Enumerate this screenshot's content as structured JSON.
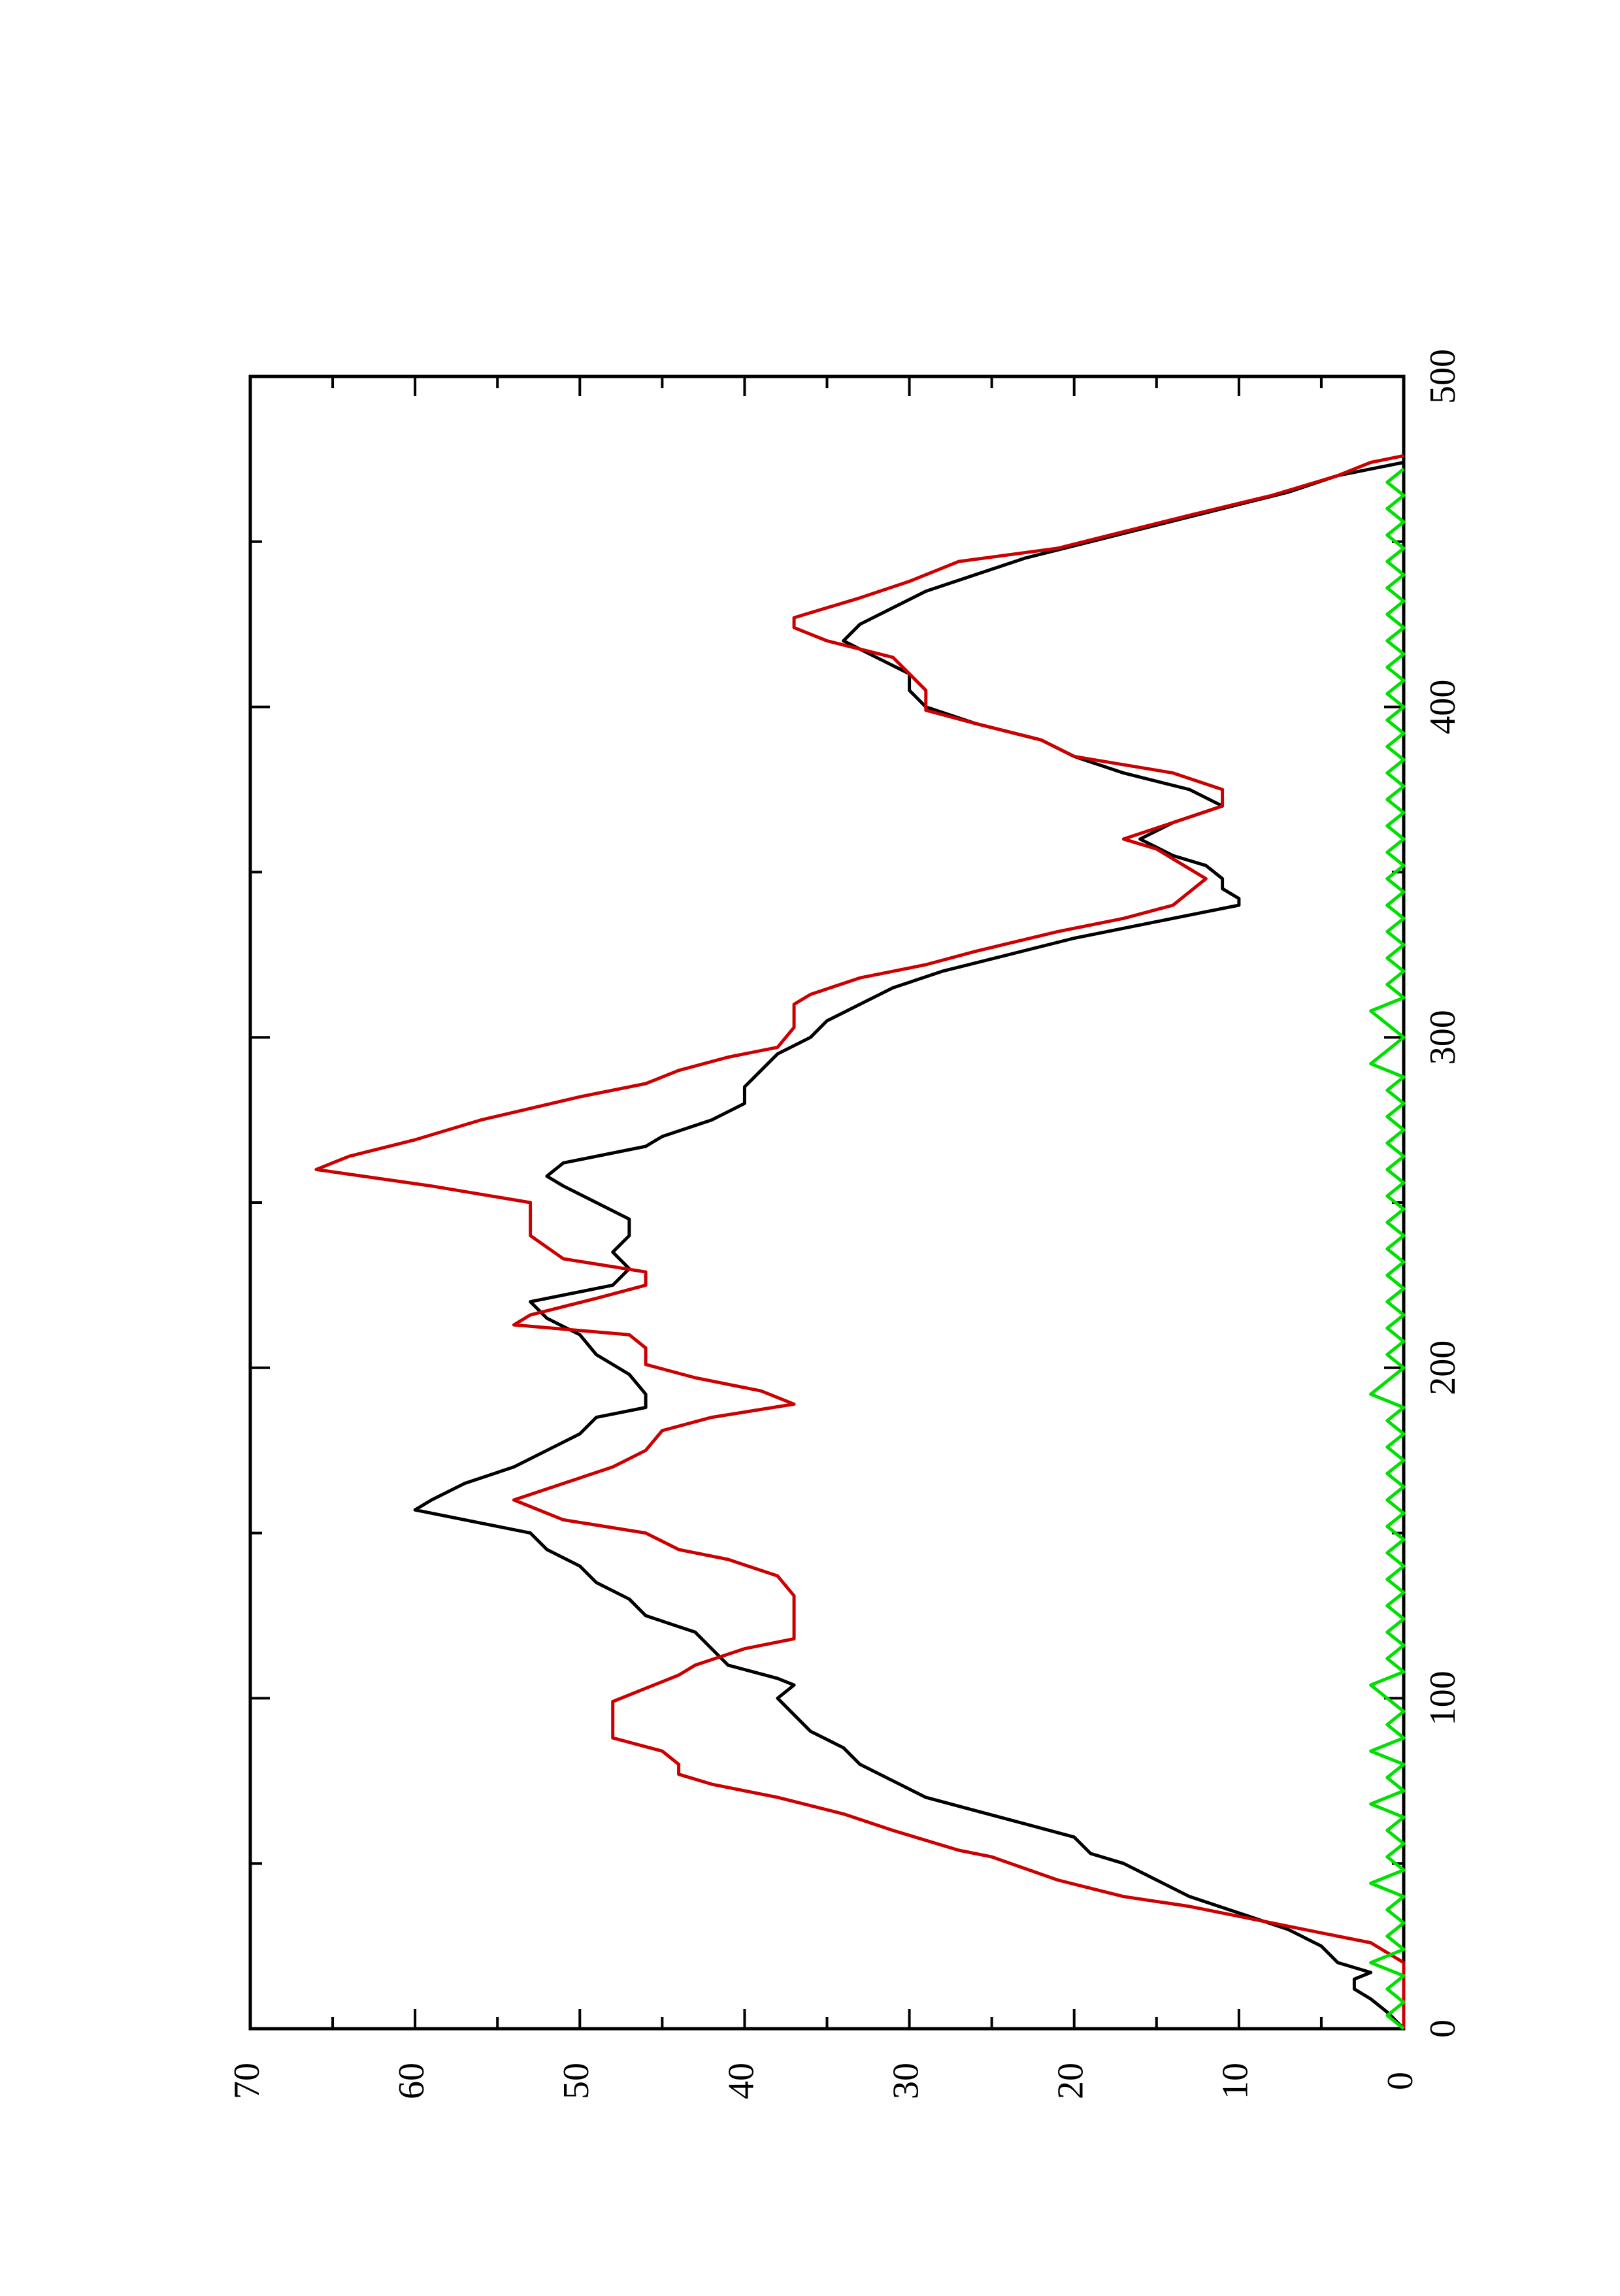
{
  "chart_data": {
    "type": "line",
    "orientation": "rotated 90 degrees counter-clockwise (x axis runs bottom to top, y axis runs right to left)",
    "title": "",
    "xlabel": "",
    "ylabel": "",
    "xlim": [
      0,
      500
    ],
    "ylim": [
      0,
      70
    ],
    "x_ticks": [
      0,
      100,
      200,
      300,
      400,
      500
    ],
    "y_ticks": [
      0,
      10,
      20,
      30,
      40,
      50,
      60,
      70
    ],
    "grid": false,
    "legend": "none",
    "series": [
      {
        "color": "#000000",
        "points": [
          [
            0,
            0
          ],
          [
            5,
            1
          ],
          [
            9,
            2
          ],
          [
            12,
            3
          ],
          [
            15,
            3
          ],
          [
            17,
            2
          ],
          [
            20,
            4
          ],
          [
            25,
            5
          ],
          [
            30,
            7
          ],
          [
            35,
            10
          ],
          [
            40,
            13
          ],
          [
            45,
            15
          ],
          [
            50,
            17
          ],
          [
            53,
            19
          ],
          [
            58,
            20
          ],
          [
            62,
            23
          ],
          [
            66,
            26
          ],
          [
            70,
            29
          ],
          [
            75,
            31
          ],
          [
            80,
            33
          ],
          [
            85,
            34
          ],
          [
            90,
            36
          ],
          [
            95,
            37
          ],
          [
            100,
            38
          ],
          [
            104,
            37
          ],
          [
            106,
            38
          ],
          [
            110,
            41
          ],
          [
            115,
            42
          ],
          [
            120,
            43
          ],
          [
            125,
            46
          ],
          [
            130,
            47
          ],
          [
            135,
            49
          ],
          [
            140,
            50
          ],
          [
            145,
            52
          ],
          [
            150,
            53
          ],
          [
            153,
            56
          ],
          [
            157,
            60
          ],
          [
            160,
            59
          ],
          [
            165,
            57
          ],
          [
            170,
            54
          ],
          [
            175,
            52
          ],
          [
            180,
            50
          ],
          [
            185,
            49
          ],
          [
            188,
            46
          ],
          [
            192,
            46
          ],
          [
            198,
            47
          ],
          [
            204,
            49
          ],
          [
            210,
            50
          ],
          [
            215,
            52
          ],
          [
            220,
            53
          ],
          [
            225,
            48
          ],
          [
            230,
            47
          ],
          [
            235,
            48
          ],
          [
            240,
            47
          ],
          [
            245,
            47
          ],
          [
            250,
            49
          ],
          [
            255,
            51
          ],
          [
            258,
            52
          ],
          [
            262,
            51
          ],
          [
            267,
            46
          ],
          [
            270,
            45
          ],
          [
            275,
            42
          ],
          [
            280,
            40
          ],
          [
            285,
            40
          ],
          [
            290,
            39
          ],
          [
            295,
            38
          ],
          [
            300,
            36
          ],
          [
            305,
            35
          ],
          [
            310,
            33
          ],
          [
            315,
            31
          ],
          [
            320,
            28
          ],
          [
            330,
            20
          ],
          [
            335,
            15
          ],
          [
            338,
            12
          ],
          [
            340,
            10
          ],
          [
            342,
            10
          ],
          [
            345,
            11
          ],
          [
            348,
            11
          ],
          [
            352,
            12
          ],
          [
            355,
            14
          ],
          [
            360,
            16
          ],
          [
            365,
            14
          ],
          [
            370,
            11
          ],
          [
            375,
            13
          ],
          [
            380,
            17
          ],
          [
            385,
            20
          ],
          [
            390,
            22
          ],
          [
            395,
            26
          ],
          [
            400,
            29
          ],
          [
            405,
            30
          ],
          [
            410,
            30
          ],
          [
            415,
            32
          ],
          [
            420,
            34
          ],
          [
            425,
            33
          ],
          [
            430,
            31
          ],
          [
            435,
            29
          ],
          [
            440,
            26
          ],
          [
            445,
            23
          ],
          [
            450,
            19
          ],
          [
            455,
            15
          ],
          [
            460,
            11
          ],
          [
            465,
            7
          ],
          [
            470,
            4
          ],
          [
            472,
            2
          ],
          [
            474,
            0
          ]
        ]
      },
      {
        "color": "#cc0000",
        "points": [
          [
            0,
            0
          ],
          [
            20,
            0
          ],
          [
            26,
            2
          ],
          [
            29,
            5
          ],
          [
            32,
            8
          ],
          [
            37,
            13
          ],
          [
            40,
            17
          ],
          [
            45,
            21
          ],
          [
            52,
            25
          ],
          [
            54,
            27
          ],
          [
            60,
            31
          ],
          [
            65,
            34
          ],
          [
            70,
            38
          ],
          [
            74,
            42
          ],
          [
            77,
            44
          ],
          [
            80,
            44
          ],
          [
            84,
            45
          ],
          [
            88,
            48
          ],
          [
            96,
            48
          ],
          [
            99,
            48
          ],
          [
            103,
            46
          ],
          [
            107,
            44
          ],
          [
            110,
            43
          ],
          [
            115,
            40
          ],
          [
            118,
            37
          ],
          [
            125,
            37
          ],
          [
            131,
            37
          ],
          [
            137,
            38
          ],
          [
            142,
            41
          ],
          [
            145,
            44
          ],
          [
            150,
            46
          ],
          [
            154,
            51
          ],
          [
            160,
            54
          ],
          [
            165,
            51
          ],
          [
            170,
            48
          ],
          [
            175,
            46
          ],
          [
            181,
            45
          ],
          [
            185,
            42
          ],
          [
            189,
            37
          ],
          [
            193,
            39
          ],
          [
            197,
            43
          ],
          [
            201,
            46
          ],
          [
            206,
            46
          ],
          [
            210,
            47
          ],
          [
            213,
            54
          ],
          [
            216,
            53
          ],
          [
            221,
            49
          ],
          [
            225,
            46
          ],
          [
            229,
            46
          ],
          [
            233,
            51
          ],
          [
            240,
            53
          ],
          [
            245,
            53
          ],
          [
            250,
            53
          ],
          [
            255,
            59
          ],
          [
            260,
            66
          ],
          [
            264,
            64
          ],
          [
            269,
            60
          ],
          [
            275,
            56
          ],
          [
            282,
            50
          ],
          [
            286,
            46
          ],
          [
            290,
            44
          ],
          [
            294,
            41
          ],
          [
            297,
            38
          ],
          [
            303,
            37
          ],
          [
            310,
            37
          ],
          [
            313,
            36
          ],
          [
            318,
            33
          ],
          [
            322,
            29
          ],
          [
            326,
            26
          ],
          [
            332,
            21
          ],
          [
            336,
            17
          ],
          [
            340,
            14
          ],
          [
            344,
            13
          ],
          [
            348,
            12
          ],
          [
            351,
            13
          ],
          [
            354,
            14
          ],
          [
            357,
            15
          ],
          [
            360,
            17
          ],
          [
            365,
            14
          ],
          [
            370,
            11
          ],
          [
            375,
            11
          ],
          [
            380,
            14
          ],
          [
            385,
            20
          ],
          [
            390,
            22
          ],
          [
            395,
            26
          ],
          [
            399,
            29
          ],
          [
            405,
            29
          ],
          [
            410,
            30
          ],
          [
            415,
            31
          ],
          [
            420,
            35
          ],
          [
            424,
            37
          ],
          [
            427,
            37
          ],
          [
            433,
            33
          ],
          [
            438,
            30
          ],
          [
            444,
            27
          ],
          [
            448,
            21
          ],
          [
            453,
            17
          ],
          [
            458,
            13
          ],
          [
            464,
            8
          ],
          [
            470,
            4
          ],
          [
            474,
            2
          ],
          [
            476,
            0
          ]
        ]
      },
      {
        "color": "#00e000",
        "points": [
          [
            0,
            0
          ],
          [
            4,
            1
          ],
          [
            8,
            0
          ],
          [
            12,
            1
          ],
          [
            16,
            0
          ],
          [
            20,
            2
          ],
          [
            24,
            0
          ],
          [
            28,
            1
          ],
          [
            32,
            0
          ],
          [
            36,
            1
          ],
          [
            40,
            0
          ],
          [
            44,
            2
          ],
          [
            48,
            0
          ],
          [
            52,
            1
          ],
          [
            56,
            0
          ],
          [
            60,
            1
          ],
          [
            64,
            0
          ],
          [
            68,
            2
          ],
          [
            72,
            0
          ],
          [
            76,
            1
          ],
          [
            80,
            0
          ],
          [
            84,
            2
          ],
          [
            88,
            0
          ],
          [
            92,
            1
          ],
          [
            96,
            0
          ],
          [
            100,
            1
          ],
          [
            104,
            2
          ],
          [
            108,
            0
          ],
          [
            112,
            1
          ],
          [
            116,
            0
          ],
          [
            120,
            1
          ],
          [
            124,
            0
          ],
          [
            128,
            1
          ],
          [
            132,
            0
          ],
          [
            136,
            1
          ],
          [
            140,
            0
          ],
          [
            144,
            1
          ],
          [
            148,
            0
          ],
          [
            152,
            1
          ],
          [
            156,
            0
          ],
          [
            160,
            1
          ],
          [
            164,
            0
          ],
          [
            168,
            1
          ],
          [
            172,
            0
          ],
          [
            176,
            1
          ],
          [
            180,
            0
          ],
          [
            184,
            1
          ],
          [
            188,
            0
          ],
          [
            192,
            2
          ],
          [
            196,
            1
          ],
          [
            200,
            0
          ],
          [
            204,
            1
          ],
          [
            208,
            0
          ],
          [
            212,
            1
          ],
          [
            216,
            0
          ],
          [
            220,
            1
          ],
          [
            224,
            0
          ],
          [
            228,
            1
          ],
          [
            232,
            0
          ],
          [
            236,
            1
          ],
          [
            240,
            0
          ],
          [
            244,
            1
          ],
          [
            248,
            0
          ],
          [
            252,
            1
          ],
          [
            256,
            0
          ],
          [
            260,
            1
          ],
          [
            264,
            0
          ],
          [
            268,
            1
          ],
          [
            272,
            0
          ],
          [
            276,
            1
          ],
          [
            280,
            0
          ],
          [
            284,
            1
          ],
          [
            288,
            0
          ],
          [
            292,
            2
          ],
          [
            296,
            1
          ],
          [
            300,
            0
          ],
          [
            304,
            1
          ],
          [
            308,
            2
          ],
          [
            312,
            0
          ],
          [
            316,
            1
          ],
          [
            320,
            0
          ],
          [
            324,
            1
          ],
          [
            328,
            0
          ],
          [
            332,
            1
          ],
          [
            336,
            0
          ],
          [
            340,
            1
          ],
          [
            344,
            0
          ],
          [
            348,
            1
          ],
          [
            352,
            0
          ],
          [
            356,
            1
          ],
          [
            360,
            0
          ],
          [
            364,
            1
          ],
          [
            368,
            0
          ],
          [
            372,
            1
          ],
          [
            376,
            0
          ],
          [
            380,
            1
          ],
          [
            384,
            0
          ],
          [
            388,
            1
          ],
          [
            392,
            0
          ],
          [
            396,
            1
          ],
          [
            400,
            0
          ],
          [
            404,
            1
          ],
          [
            408,
            0
          ],
          [
            412,
            1
          ],
          [
            416,
            0
          ],
          [
            420,
            1
          ],
          [
            424,
            0
          ],
          [
            428,
            1
          ],
          [
            432,
            0
          ],
          [
            436,
            1
          ],
          [
            440,
            0
          ],
          [
            444,
            1
          ],
          [
            448,
            0
          ],
          [
            452,
            1
          ],
          [
            456,
            0
          ],
          [
            460,
            1
          ],
          [
            464,
            0
          ],
          [
            468,
            1
          ],
          [
            472,
            0
          ]
        ]
      }
    ]
  }
}
